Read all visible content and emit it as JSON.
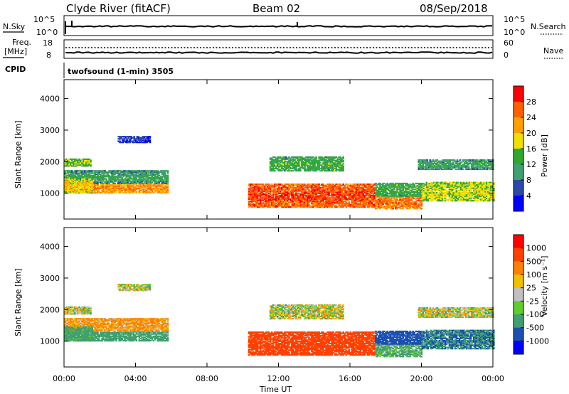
{
  "header": {
    "station": "Clyde River (fitACF)",
    "beam": "Beam 02",
    "date": "08/Sep/2018"
  },
  "panels": {
    "nsky_label": "N.Sky",
    "nsearch_label": "N.Search",
    "nsky_ticks": [
      "10^5",
      "10^0"
    ],
    "freq_label_1": "Freq.",
    "freq_label_2": "[MHz]",
    "freq_ticks": [
      "18",
      "8"
    ],
    "nave_label": "Nave",
    "nave_ticks": [
      "60",
      "0"
    ],
    "cpid_label": "CPID",
    "cpid_value": "twofsound (1-min) 3505"
  },
  "axes": {
    "xlabel": "Time UT",
    "ylabel": "Slant Range [km]",
    "x_ticks": [
      "00:00",
      "04:00",
      "08:00",
      "12:00",
      "16:00",
      "20:00",
      "00:00"
    ],
    "y_ticks": [
      "1000",
      "2000",
      "3000",
      "4000"
    ],
    "y_tick_values": [
      1000,
      2000,
      3000,
      4000
    ],
    "ylim": [
      180,
      4600
    ],
    "xlim_hours": [
      0,
      24
    ]
  },
  "power_scale": {
    "title": "Power [dB]",
    "ticks": [
      "28",
      "24",
      "20",
      "16",
      "12",
      "8",
      "4"
    ],
    "colors": [
      "#0000ff",
      "#2a4aa8",
      "#40a070",
      "#30a830",
      "#f0e000",
      "#ffa000",
      "#ff6000",
      "#ff0000"
    ]
  },
  "velocity_scale": {
    "title": "Velocity [m s⁻¹]",
    "ticks": [
      "1000",
      "500",
      "100",
      "25",
      "-25",
      "-100",
      "-500",
      "-1000"
    ],
    "colors": [
      "#0000ff",
      "#1c50b0",
      "#40a070",
      "#60cc30",
      "#c0c0c0",
      "#f0c000",
      "#ff8000",
      "#ff4000",
      "#ff0000"
    ]
  },
  "chart_data": {
    "type": "heatmap",
    "panels": [
      "Power [dB]",
      "Velocity [m s⁻¹]"
    ],
    "xlabel": "Time UT",
    "ylabel": "Slant Range [km]",
    "xlim": [
      "00:00",
      "24:00"
    ],
    "ylim": [
      180,
      4600
    ],
    "regions": [
      {
        "t_start": 0.0,
        "t_end": 5.8,
        "range_km": [
          1000,
          1300
        ],
        "power_db": 24,
        "velocity_ms": 250
      },
      {
        "t_start": 0.0,
        "t_end": 5.8,
        "range_km": [
          1300,
          1700
        ],
        "power_db": 12,
        "velocity_ms": -150
      },
      {
        "t_start": 0.0,
        "t_end": 1.5,
        "range_km": [
          1850,
          2100
        ],
        "power_db": 16,
        "velocity_ms": 0
      },
      {
        "t_start": 0.0,
        "t_end": 1.6,
        "range_km": [
          1000,
          1450
        ],
        "power_db": 20,
        "velocity_ms": 200
      },
      {
        "t_start": 3.0,
        "t_end": 4.8,
        "range_km": [
          2600,
          2800
        ],
        "power_db": 6,
        "velocity_ms": 0
      },
      {
        "t_start": 10.3,
        "t_end": 17.4,
        "range_km": [
          550,
          1300
        ],
        "power_db": 28,
        "velocity_ms": -700
      },
      {
        "t_start": 11.5,
        "t_end": 15.6,
        "range_km": [
          1700,
          2150
        ],
        "power_db": 14,
        "velocity_ms": 0
      },
      {
        "t_start": 17.4,
        "t_end": 20.0,
        "range_km": [
          500,
          900
        ],
        "power_db": 26,
        "velocity_ms": 150
      },
      {
        "t_start": 17.4,
        "t_end": 20.0,
        "range_km": [
          900,
          1300
        ],
        "power_db": 14,
        "velocity_ms": 700
      },
      {
        "t_start": 20.0,
        "t_end": 24.0,
        "range_km": [
          750,
          1350
        ],
        "power_db": 18,
        "velocity_ms": 500
      },
      {
        "t_start": 19.8,
        "t_end": 24.0,
        "range_km": [
          1750,
          2050
        ],
        "power_db": 12,
        "velocity_ms": 0
      }
    ]
  }
}
